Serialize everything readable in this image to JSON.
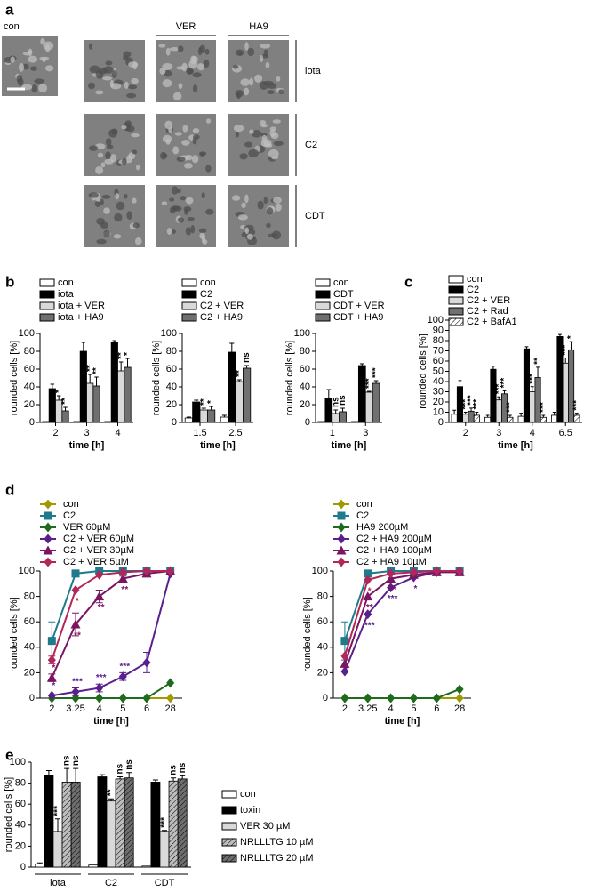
{
  "panel_labels": [
    "a",
    "b",
    "c",
    "d",
    "e"
  ],
  "micrographs": {
    "control_label": "con",
    "columns": [
      "VER",
      "HA9"
    ],
    "rows": [
      "iota",
      "C2",
      "CDT"
    ]
  },
  "chart_data": [
    {
      "type": "bar",
      "ylabel": "rounded cells [%]",
      "xlabel": "time [h]",
      "categories": [
        "2",
        "3",
        "4"
      ],
      "ylim": [
        0,
        100
      ],
      "yticks": [
        0,
        20,
        40,
        60,
        80,
        100
      ],
      "series": [
        {
          "name": "con",
          "color": "#ffffff",
          "values": [
            1,
            1,
            1
          ],
          "errors": [
            null,
            null,
            null
          ]
        },
        {
          "name": "iota",
          "color": "#000000",
          "values": [
            38,
            80,
            90
          ],
          "errors": [
            5,
            10,
            2
          ]
        },
        {
          "name": "iota + VER",
          "color": "#d9d9d9",
          "values": [
            25,
            44,
            58
          ],
          "errors": [
            5,
            10,
            10
          ],
          "significance": [
            "*",
            "**",
            "**"
          ]
        },
        {
          "name": "iota + HA9",
          "color": "#707070",
          "values": [
            13,
            41,
            62
          ],
          "errors": [
            4,
            10,
            10
          ],
          "significance": [
            "**",
            "**",
            "*"
          ]
        }
      ]
    },
    {
      "type": "bar",
      "ylabel": "rounded cells [%]",
      "xlabel": "time [h]",
      "categories": [
        "1.5",
        "2.5"
      ],
      "ylim": [
        0,
        100
      ],
      "yticks": [
        0,
        20,
        40,
        60,
        80,
        100
      ],
      "series": [
        {
          "name": "con",
          "color": "#ffffff",
          "values": [
            5,
            6
          ],
          "errors": [
            1,
            2
          ]
        },
        {
          "name": "C2",
          "color": "#000000",
          "values": [
            23,
            79
          ],
          "errors": [
            2,
            10
          ]
        },
        {
          "name": "C2 + VER",
          "color": "#d9d9d9",
          "values": [
            14,
            46
          ],
          "errors": [
            2,
            2
          ],
          "significance": [
            "**",
            "**"
          ]
        },
        {
          "name": "C2 + HA9",
          "color": "#707070",
          "values": [
            14,
            61
          ],
          "errors": [
            4,
            3
          ],
          "significance": [
            "*",
            "ns"
          ]
        }
      ]
    },
    {
      "type": "bar",
      "ylabel": "rounded cells [%]",
      "xlabel": "time [h]",
      "categories": [
        "1",
        "3"
      ],
      "ylim": [
        0,
        100
      ],
      "yticks": [
        0,
        20,
        40,
        60,
        80,
        100
      ],
      "series": [
        {
          "name": "con",
          "color": "#ffffff",
          "values": [
            1,
            1
          ],
          "errors": [
            null,
            null
          ]
        },
        {
          "name": "CDT",
          "color": "#000000",
          "values": [
            27,
            64
          ],
          "errors": [
            10,
            2
          ]
        },
        {
          "name": "CDT + VER",
          "color": "#d9d9d9",
          "values": [
            10,
            34
          ],
          "errors": [
            4,
            1
          ],
          "significance": [
            "ns",
            "***"
          ]
        },
        {
          "name": "CDT + HA9",
          "color": "#707070",
          "values": [
            12,
            44
          ],
          "errors": [
            4,
            3
          ],
          "significance": [
            "ns",
            "***"
          ]
        }
      ]
    },
    {
      "type": "bar",
      "ylabel": "rounded cells [%]",
      "xlabel": "time [h]",
      "categories": [
        "2",
        "3",
        "4",
        "6.5"
      ],
      "ylim": [
        0,
        100
      ],
      "yticks": [
        0,
        10,
        20,
        30,
        40,
        50,
        60,
        70,
        80,
        90,
        100
      ],
      "series": [
        {
          "name": "con",
          "color": "#ffffff",
          "values": [
            8,
            5,
            6,
            7
          ],
          "errors": [
            4,
            2,
            3,
            3
          ]
        },
        {
          "name": "C2",
          "color": "#000000",
          "values": [
            35,
            52,
            72,
            84
          ],
          "errors": [
            6,
            3,
            2,
            2
          ]
        },
        {
          "name": "C2 + VER",
          "color": "#d9d9d9",
          "values": [
            8,
            22,
            30,
            58
          ],
          "errors": [
            2,
            3,
            5,
            5
          ],
          "significance": [
            "***",
            "***",
            "***",
            "***"
          ]
        },
        {
          "name": "C2 + Rad",
          "color": "#707070",
          "values": [
            11,
            28,
            44,
            71
          ],
          "errors": [
            3,
            3,
            10,
            8
          ],
          "significance": [
            "***",
            "***",
            "**",
            "*"
          ]
        },
        {
          "name": "C2 + BafA1",
          "color": "#ffffff",
          "hatch": true,
          "values": [
            7,
            5,
            5,
            7
          ],
          "errors": [
            3,
            2,
            2,
            2
          ],
          "significance": [
            "***",
            "***",
            "***",
            "***"
          ]
        }
      ]
    },
    {
      "type": "line",
      "ylabel": "rounded cells [%]",
      "xlabel": "time [h]",
      "categories": [
        "2",
        "3.25",
        "4",
        "5",
        "6",
        "28"
      ],
      "ylim": [
        0,
        100
      ],
      "yticks": [
        0,
        20,
        40,
        60,
        80,
        100
      ],
      "series": [
        {
          "name": "con",
          "color": "#a09a00",
          "marker": "diamond",
          "values": [
            0,
            0,
            0,
            0,
            0,
            0
          ]
        },
        {
          "name": "C2",
          "color": "#1f7a8c",
          "marker": "square",
          "values": [
            45,
            98,
            100,
            100,
            100,
            100
          ],
          "errors": [
            15,
            null,
            null,
            null,
            null,
            null
          ]
        },
        {
          "name": "VER 60µM",
          "color": "#1e6b1e",
          "marker": "diamond",
          "values": [
            0,
            0,
            0,
            0,
            0,
            12
          ]
        },
        {
          "name": "C2 + VER 60µM",
          "color": "#5b1f8c",
          "marker": "diamond",
          "values": [
            2,
            5,
            8,
            17,
            28,
            98
          ],
          "errors": [
            null,
            3,
            3,
            3,
            8,
            null
          ],
          "significance": [
            "*",
            "***",
            "***",
            "***",
            null,
            null
          ]
        },
        {
          "name": "C2 + VER 30µM",
          "color": "#7b1461",
          "marker": "triangle",
          "values": [
            16,
            58,
            80,
            94,
            98,
            100
          ],
          "errors": [
            3,
            9,
            5,
            2,
            null,
            null
          ],
          "significance": [
            "*",
            "**",
            "**",
            "**",
            null,
            null
          ]
        },
        {
          "name": "C2 + VER 5µM",
          "color": "#b3265a",
          "marker": "diamond",
          "values": [
            30,
            85,
            97,
            99,
            100,
            100
          ],
          "errors": [
            3,
            null,
            null,
            null,
            null,
            null
          ],
          "significance": [
            null,
            "*",
            null,
            null,
            null,
            null
          ]
        }
      ]
    },
    {
      "type": "line",
      "ylabel": "rounded cells [%]",
      "xlabel": "time [h]",
      "categories": [
        "2",
        "3.25",
        "4",
        "5",
        "6",
        "28"
      ],
      "ylim": [
        0,
        100
      ],
      "yticks": [
        0,
        20,
        40,
        60,
        80,
        100
      ],
      "series": [
        {
          "name": "con",
          "color": "#a09a00",
          "marker": "diamond",
          "values": [
            0,
            0,
            0,
            0,
            0,
            0
          ]
        },
        {
          "name": "C2",
          "color": "#1f7a8c",
          "marker": "square",
          "values": [
            45,
            98,
            100,
            100,
            100,
            100
          ],
          "errors": [
            15,
            null,
            null,
            null,
            null,
            null
          ]
        },
        {
          "name": "HA9 200µM",
          "color": "#1e6b1e",
          "marker": "diamond",
          "values": [
            0,
            0,
            0,
            0,
            0,
            7
          ]
        },
        {
          "name": "C2 + HA9 200µM",
          "color": "#5b1f8c",
          "marker": "diamond",
          "values": [
            21,
            66,
            87,
            95,
            99,
            100
          ],
          "significance": [
            null,
            "***",
            "***",
            "*",
            null,
            null
          ]
        },
        {
          "name": "C2 + HA9 100µM",
          "color": "#7b1461",
          "marker": "triangle",
          "values": [
            27,
            80,
            94,
            97,
            99,
            99
          ],
          "significance": [
            null,
            "**",
            "**",
            null,
            null,
            null
          ]
        },
        {
          "name": "C2 + HA9 10µM",
          "color": "#b3265a",
          "marker": "diamond",
          "values": [
            33,
            93,
            98,
            99,
            100,
            100
          ],
          "significance": [
            null,
            "*",
            null,
            null,
            null,
            null
          ]
        }
      ]
    },
    {
      "type": "bar",
      "ylabel": "rounded cells [%]",
      "categories": [
        "iota",
        "C2",
        "CDT"
      ],
      "ylim": [
        0,
        100
      ],
      "yticks": [
        0,
        20,
        40,
        60,
        80,
        100
      ],
      "series": [
        {
          "name": "con",
          "color": "#ffffff",
          "values": [
            3,
            2,
            1
          ],
          "errors": [
            1,
            null,
            null
          ]
        },
        {
          "name": "toxin",
          "color": "#000000",
          "values": [
            87,
            86,
            81
          ],
          "errors": [
            5,
            2,
            2
          ]
        },
        {
          "name": "VER 30 µM",
          "color": "#d9d9d9",
          "values": [
            34,
            63,
            34
          ],
          "errors": [
            12,
            2,
            1
          ],
          "significance": [
            "***",
            "**",
            "***"
          ]
        },
        {
          "name": "NRLLLTG 10 µM",
          "color": "#bdbdbd",
          "hatch": true,
          "values": [
            81,
            84,
            82
          ],
          "errors": [
            13,
            2,
            3
          ],
          "significance": [
            "ns",
            "ns",
            "ns"
          ]
        },
        {
          "name": "NRLLLTG 20 µM",
          "color": "#6e6e6e",
          "hatch": true,
          "values": [
            81,
            85,
            84
          ],
          "errors": [
            13,
            5,
            3
          ],
          "significance": [
            "ns",
            "ns",
            "ns"
          ]
        }
      ]
    }
  ]
}
